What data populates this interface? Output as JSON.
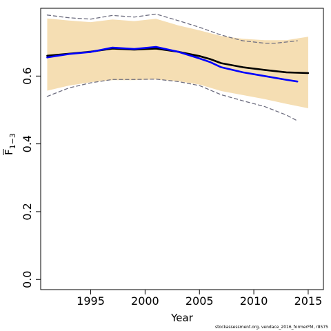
{
  "chart_data": {
    "type": "line",
    "xlabel": "Year",
    "ylabel": "F",
    "ylabel_subscript": "1−3",
    "xlim": [
      1990.4,
      2016.4
    ],
    "ylim": [
      -0.03,
      0.8
    ],
    "x_ticks": [
      1995,
      2000,
      2005,
      2010,
      2015
    ],
    "y_ticks": [
      0.0,
      0.2,
      0.4,
      0.6
    ],
    "x_tick_labels": [
      "1995",
      "2000",
      "2005",
      "2010",
      "2015"
    ],
    "y_tick_labels": [
      "0.0",
      "0.2",
      "0.4",
      "0.6"
    ],
    "grid": false,
    "colors": {
      "band": "#f5deb3",
      "estimate": "#000000",
      "retro": "#0000ff",
      "retro_ci": "#6e6e80"
    },
    "confidence_band": {
      "x": [
        1991,
        1993,
        1995,
        1997,
        1999,
        2001,
        2003,
        2005,
        2007,
        2009,
        2011,
        2013,
        2015
      ],
      "lower": [
        0.557,
        0.572,
        0.582,
        0.588,
        0.588,
        0.59,
        0.585,
        0.575,
        0.556,
        0.544,
        0.532,
        0.518,
        0.505
      ],
      "upper": [
        0.77,
        0.764,
        0.759,
        0.767,
        0.762,
        0.769,
        0.75,
        0.735,
        0.718,
        0.71,
        0.706,
        0.706,
        0.716
      ]
    },
    "series": [
      {
        "role": "estimate",
        "x": [
          1991,
          1993,
          1995,
          1997,
          1999,
          2001,
          2003,
          2005,
          2006,
          2007,
          2009,
          2011,
          2013,
          2015
        ],
        "values": [
          0.66,
          0.666,
          0.672,
          0.681,
          0.678,
          0.681,
          0.672,
          0.659,
          0.65,
          0.638,
          0.626,
          0.618,
          0.611,
          0.609
        ]
      },
      {
        "role": "retro",
        "x": [
          1991,
          1993,
          1995,
          1997,
          1999,
          2001,
          2003,
          2005,
          2006,
          2007,
          2009,
          2011,
          2013,
          2014
        ],
        "values": [
          0.655,
          0.665,
          0.671,
          0.684,
          0.68,
          0.686,
          0.672,
          0.652,
          0.641,
          0.626,
          0.611,
          0.6,
          0.589,
          0.584
        ]
      },
      {
        "role": "retro_upper",
        "dashed": true,
        "x": [
          1991,
          1993,
          1995,
          1997,
          1999,
          2001,
          2003,
          2005,
          2007,
          2009,
          2011,
          2012,
          2014
        ],
        "values": [
          0.78,
          0.772,
          0.768,
          0.779,
          0.774,
          0.783,
          0.764,
          0.744,
          0.721,
          0.704,
          0.697,
          0.697,
          0.704
        ]
      },
      {
        "role": "retro_lower",
        "dashed": true,
        "x": [
          1991,
          1993,
          1995,
          1997,
          1999,
          2001,
          2003,
          2005,
          2007,
          2009,
          2011,
          2013,
          2014
        ],
        "values": [
          0.54,
          0.565,
          0.58,
          0.59,
          0.59,
          0.591,
          0.584,
          0.572,
          0.545,
          0.527,
          0.51,
          0.485,
          0.468
        ]
      }
    ]
  },
  "footer": {
    "note": "stockassessment.org,  vendace_2016_formerFM,  r8575"
  }
}
